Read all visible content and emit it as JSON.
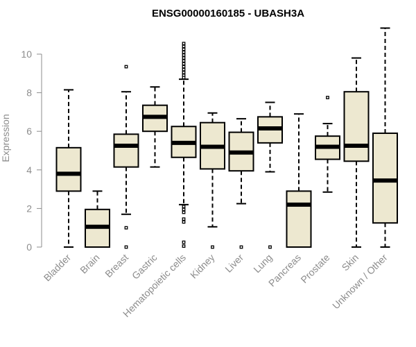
{
  "chart_data": {
    "type": "boxplot",
    "title": "ENSG00000160185 - UBASH3A",
    "xlabel": "",
    "ylabel": "Expression",
    "ylim": [
      0,
      11.5
    ],
    "yticks": [
      0,
      2,
      4,
      6,
      8,
      10
    ],
    "colors": {
      "box_fill": "#ede8d0",
      "stroke": "#000000",
      "axis": "#8c8c8c"
    },
    "categories": [
      "Bladder",
      "Brain",
      "Breast",
      "Gastric",
      "Hematopoietic cells",
      "Kidney",
      "Liver",
      "Lung",
      "Pancreas",
      "Prostate",
      "Skin",
      "Unknown / Other"
    ],
    "boxes": [
      {
        "name": "Bladder",
        "whisker_low": 0,
        "q1": 2.9,
        "median": 3.8,
        "q3": 5.15,
        "whisker_high": 8.15,
        "outliers": []
      },
      {
        "name": "Brain",
        "whisker_low": 0,
        "q1": 0,
        "median": 1.05,
        "q3": 1.95,
        "whisker_high": 2.9,
        "outliers": []
      },
      {
        "name": "Breast",
        "whisker_low": 1.7,
        "q1": 4.15,
        "median": 5.25,
        "q3": 5.85,
        "whisker_high": 8.05,
        "outliers": [
          9.35,
          1.0,
          0.0
        ]
      },
      {
        "name": "Gastric",
        "whisker_low": 4.15,
        "q1": 6.0,
        "median": 6.75,
        "q3": 7.35,
        "whisker_high": 8.3,
        "outliers": []
      },
      {
        "name": "Hematopoietic cells",
        "whisker_low": 2.2,
        "q1": 4.65,
        "median": 5.4,
        "q3": 6.25,
        "whisker_high": 8.7,
        "outliers": [
          10.55,
          10.4,
          10.25,
          10.1,
          9.95,
          9.8,
          9.65,
          9.5,
          9.35,
          9.2,
          9.05,
          8.9,
          8.78,
          2.1,
          1.95,
          1.8,
          1.45,
          1.3,
          0.25,
          0.05
        ]
      },
      {
        "name": "Kidney",
        "whisker_low": 1.05,
        "q1": 4.05,
        "median": 5.2,
        "q3": 6.45,
        "whisker_high": 6.95,
        "outliers": [
          0.0
        ]
      },
      {
        "name": "Liver",
        "whisker_low": 2.25,
        "q1": 3.95,
        "median": 4.9,
        "q3": 5.95,
        "whisker_high": 6.65,
        "outliers": [
          0.0
        ]
      },
      {
        "name": "Lung",
        "whisker_low": 3.9,
        "q1": 5.4,
        "median": 6.15,
        "q3": 6.75,
        "whisker_high": 7.5,
        "outliers": [
          0.0
        ]
      },
      {
        "name": "Pancreas",
        "whisker_low": 0,
        "q1": 0,
        "median": 2.2,
        "q3": 2.9,
        "whisker_high": 6.9,
        "outliers": []
      },
      {
        "name": "Prostate",
        "whisker_low": 2.85,
        "q1": 4.55,
        "median": 5.2,
        "q3": 5.75,
        "whisker_high": 6.4,
        "outliers": [
          7.75
        ]
      },
      {
        "name": "Skin",
        "whisker_low": 0,
        "q1": 4.45,
        "median": 5.25,
        "q3": 8.05,
        "whisker_high": 9.8,
        "outliers": []
      },
      {
        "name": "Unknown / Other",
        "whisker_low": 0,
        "q1": 1.25,
        "median": 3.45,
        "q3": 5.9,
        "whisker_high": 11.35,
        "outliers": []
      }
    ]
  }
}
